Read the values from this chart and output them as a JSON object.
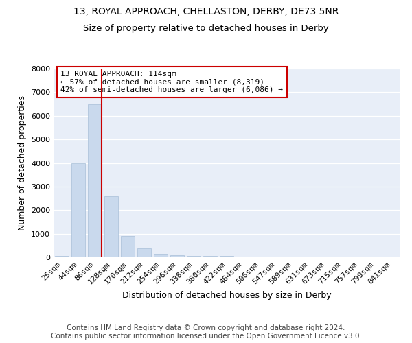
{
  "title_line1": "13, ROYAL APPROACH, CHELLASTON, DERBY, DE73 5NR",
  "title_line2": "Size of property relative to detached houses in Derby",
  "xlabel": "Distribution of detached houses by size in Derby",
  "ylabel": "Number of detached properties",
  "bar_color": "#c9d9ed",
  "bar_edge_color": "#a8bfd8",
  "plot_bg_color": "#e8eef8",
  "grid_color": "white",
  "categories": [
    "25sqm",
    "44sqm",
    "86sqm",
    "128sqm",
    "170sqm",
    "212sqm",
    "254sqm",
    "296sqm",
    "338sqm",
    "380sqm",
    "422sqm",
    "464sqm",
    "506sqm",
    "547sqm",
    "589sqm",
    "631sqm",
    "673sqm",
    "715sqm",
    "757sqm",
    "799sqm",
    "841sqm"
  ],
  "values": [
    50,
    4000,
    6500,
    2600,
    900,
    390,
    150,
    95,
    60,
    45,
    45,
    10,
    5,
    5,
    5,
    0,
    0,
    0,
    0,
    0,
    0
  ],
  "vline_color": "#cc0000",
  "vline_pos": 2.43,
  "annotation_text": "13 ROYAL APPROACH: 114sqm\n← 57% of detached houses are smaller (8,319)\n42% of semi-detached houses are larger (6,086) →",
  "annotation_box_color": "#cc0000",
  "ylim": [
    0,
    8000
  ],
  "yticks": [
    0,
    1000,
    2000,
    3000,
    4000,
    5000,
    6000,
    7000,
    8000
  ],
  "footer_text": "Contains HM Land Registry data © Crown copyright and database right 2024.\nContains public sector information licensed under the Open Government Licence v3.0.",
  "title_fontsize": 10,
  "subtitle_fontsize": 9.5,
  "label_fontsize": 9,
  "tick_fontsize": 8,
  "footer_fontsize": 7.5,
  "ann_fontsize": 8
}
